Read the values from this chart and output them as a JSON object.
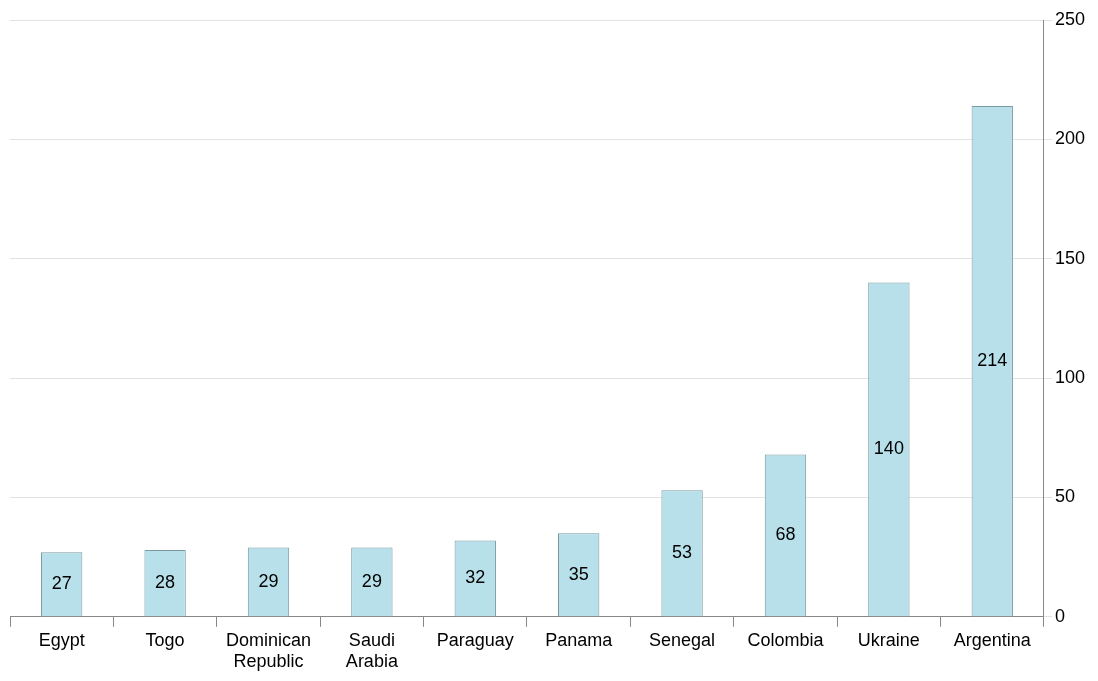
{
  "chart_data": {
    "type": "bar",
    "categories": [
      "Egypt",
      "Togo",
      "Dominican Republic",
      "Saudi Arabia",
      "Paraguay",
      "Panama",
      "Senegal",
      "Colombia",
      "Ukraine",
      "Argentina"
    ],
    "values": [
      27,
      28,
      29,
      29,
      32,
      35,
      53,
      68,
      140,
      214
    ],
    "color": "#b7e0ea",
    "ylim": [
      0,
      250
    ],
    "yticks": [
      0,
      50,
      100,
      150,
      200,
      250
    ],
    "grid": "y",
    "data_labels": true
  }
}
